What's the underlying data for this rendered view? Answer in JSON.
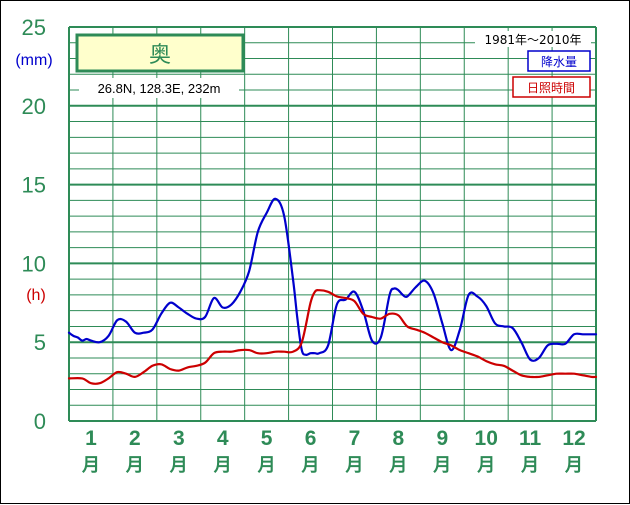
{
  "chart_data": {
    "type": "line",
    "title": "奥",
    "location": "26.8N, 128.3E, 232m",
    "period": "1981年～2010年",
    "y_unit_precip": "(mm)",
    "y_unit_sun": "(h)",
    "y_ticks": [
      "0",
      "5",
      "10",
      "15",
      "20",
      "25"
    ],
    "ylim": [
      0,
      25
    ],
    "xlim": [
      0.5,
      12.5
    ],
    "months": [
      "1",
      "2",
      "3",
      "4",
      "5",
      "6",
      "7",
      "8",
      "9",
      "10",
      "11",
      "12"
    ],
    "month_suffix": "月",
    "grid": true,
    "legend_position": "top-right",
    "series": [
      {
        "name": "降水量",
        "color": "#0000cc",
        "x": [
          0.5,
          0.6,
          0.7,
          0.8,
          0.9,
          1.0,
          1.2,
          1.4,
          1.6,
          1.8,
          2.0,
          2.2,
          2.4,
          2.6,
          2.8,
          3.0,
          3.2,
          3.4,
          3.6,
          3.8,
          4.0,
          4.2,
          4.4,
          4.6,
          4.8,
          5.0,
          5.2,
          5.4,
          5.6,
          5.7,
          5.8,
          5.9,
          6.0,
          6.1,
          6.2,
          6.4,
          6.6,
          6.8,
          7.0,
          7.2,
          7.4,
          7.6,
          7.8,
          7.9,
          8.0,
          8.1,
          8.2,
          8.4,
          8.6,
          8.8,
          9.0,
          9.2,
          9.4,
          9.6,
          9.8,
          10.0,
          10.2,
          10.4,
          10.6,
          10.8,
          11.0,
          11.2,
          11.4,
          11.6,
          11.8,
          12.0,
          12.2,
          12.4,
          12.5
        ],
        "y": [
          5.6,
          5.4,
          5.3,
          5.1,
          5.2,
          5.1,
          5.0,
          5.4,
          6.4,
          6.3,
          5.6,
          5.6,
          5.8,
          6.8,
          7.5,
          7.2,
          6.8,
          6.5,
          6.6,
          7.8,
          7.2,
          7.4,
          8.2,
          9.5,
          12.0,
          13.2,
          14.1,
          13.0,
          9.0,
          6.5,
          4.5,
          4.2,
          4.3,
          4.3,
          4.3,
          4.8,
          7.4,
          7.7,
          8.2,
          7.0,
          5.1,
          5.3,
          8.0,
          8.4,
          8.3,
          8.0,
          7.9,
          8.5,
          8.9,
          8.1,
          6.2,
          4.5,
          5.8,
          8.0,
          7.9,
          7.3,
          6.2,
          6.0,
          5.9,
          5.0,
          3.9,
          4.0,
          4.8,
          4.9,
          4.9,
          5.5,
          5.5,
          5.5,
          5.5
        ]
      },
      {
        "name": "日照時間",
        "color": "#cc0000",
        "x": [
          0.5,
          0.8,
          1.0,
          1.2,
          1.4,
          1.6,
          1.8,
          2.0,
          2.2,
          2.4,
          2.6,
          2.8,
          3.0,
          3.2,
          3.4,
          3.6,
          3.8,
          4.0,
          4.2,
          4.4,
          4.6,
          4.8,
          5.0,
          5.2,
          5.4,
          5.6,
          5.8,
          6.0,
          6.1,
          6.2,
          6.4,
          6.6,
          6.8,
          7.0,
          7.2,
          7.4,
          7.6,
          7.8,
          8.0,
          8.2,
          8.4,
          8.6,
          8.8,
          9.0,
          9.2,
          9.4,
          9.6,
          9.8,
          10.0,
          10.2,
          10.4,
          10.6,
          10.8,
          11.0,
          11.2,
          11.4,
          11.6,
          11.8,
          12.0,
          12.2,
          12.4,
          12.5
        ],
        "y": [
          2.7,
          2.7,
          2.4,
          2.4,
          2.7,
          3.1,
          3.0,
          2.8,
          3.1,
          3.5,
          3.6,
          3.3,
          3.2,
          3.4,
          3.5,
          3.7,
          4.3,
          4.4,
          4.4,
          4.5,
          4.5,
          4.3,
          4.3,
          4.4,
          4.4,
          4.4,
          5.0,
          7.5,
          8.2,
          8.3,
          8.2,
          7.9,
          7.8,
          7.6,
          6.8,
          6.6,
          6.5,
          6.8,
          6.7,
          6.0,
          5.8,
          5.6,
          5.3,
          5.0,
          4.8,
          4.5,
          4.3,
          4.1,
          3.8,
          3.6,
          3.5,
          3.2,
          2.9,
          2.8,
          2.8,
          2.9,
          3.0,
          3.0,
          3.0,
          2.9,
          2.8,
          2.8
        ]
      }
    ]
  }
}
